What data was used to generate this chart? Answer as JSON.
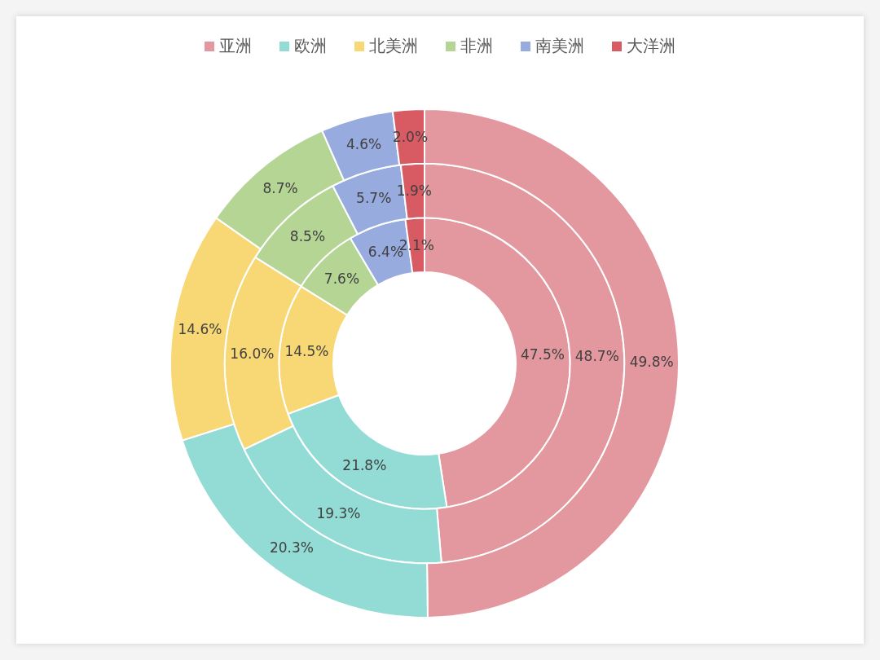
{
  "chart_data": {
    "type": "donut",
    "categories": [
      "亚洲",
      "欧洲",
      "北美洲",
      "非洲",
      "南美洲",
      "大洋洲"
    ],
    "colors": [
      "#e3979e",
      "#92dcd5",
      "#f8d775",
      "#b5d595",
      "#97abdf",
      "#d85a63"
    ],
    "series": [
      {
        "values": [
          47.5,
          21.8,
          14.5,
          7.6,
          6.4,
          2.1
        ],
        "value_labels": [
          "47.5%",
          "21.8%",
          "14.5%",
          "7.6%",
          "6.4%",
          "2.1%"
        ]
      },
      {
        "values": [
          48.7,
          19.3,
          16.0,
          8.5,
          5.7,
          1.9
        ],
        "value_labels": [
          "48.7%",
          "19.3%",
          "16.0%",
          "8.5%",
          "5.7%",
          "1.9%"
        ]
      },
      {
        "values": [
          49.8,
          20.3,
          14.6,
          8.7,
          4.6,
          2.0
        ],
        "value_labels": [
          "49.8%",
          "20.3%",
          "14.6%",
          "8.7%",
          "4.6%",
          "2.0%"
        ]
      }
    ],
    "legend": "top"
  }
}
